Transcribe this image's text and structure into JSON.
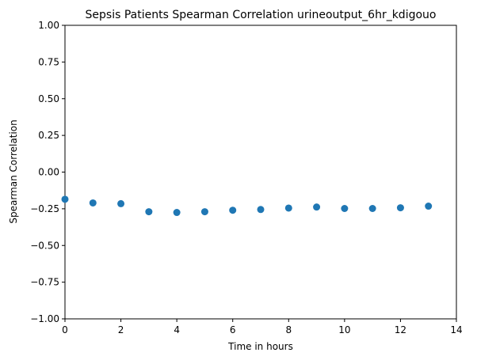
{
  "chart_data": {
    "type": "scatter",
    "title": "Sepsis Patients Spearman Correlation urineoutput_6hr_kdigouo",
    "xlabel": "Time in hours",
    "ylabel": "Spearman Correlation",
    "xlim": [
      0,
      14
    ],
    "ylim": [
      -1.0,
      1.0
    ],
    "x_ticks": [
      0,
      2,
      4,
      6,
      8,
      10,
      12,
      14
    ],
    "x_tick_labels": [
      "0",
      "2",
      "4",
      "6",
      "8",
      "10",
      "12",
      "14"
    ],
    "y_ticks": [
      -1.0,
      -0.75,
      -0.5,
      -0.25,
      0.0,
      0.25,
      0.5,
      0.75,
      1.0
    ],
    "y_tick_labels": [
      "−1.00",
      "−0.75",
      "−0.50",
      "−0.25",
      "0.00",
      "0.25",
      "0.50",
      "0.75",
      "1.00"
    ],
    "grid": false,
    "marker_color": "#1f77b4",
    "series": [
      {
        "x": [
          0,
          1,
          2,
          3,
          4,
          5,
          6,
          7,
          8,
          9,
          10,
          11,
          12,
          13
        ],
        "y": [
          -0.185,
          -0.21,
          -0.215,
          -0.27,
          -0.275,
          -0.27,
          -0.26,
          -0.255,
          -0.245,
          -0.238,
          -0.248,
          -0.248,
          -0.243,
          -0.232
        ]
      }
    ]
  }
}
